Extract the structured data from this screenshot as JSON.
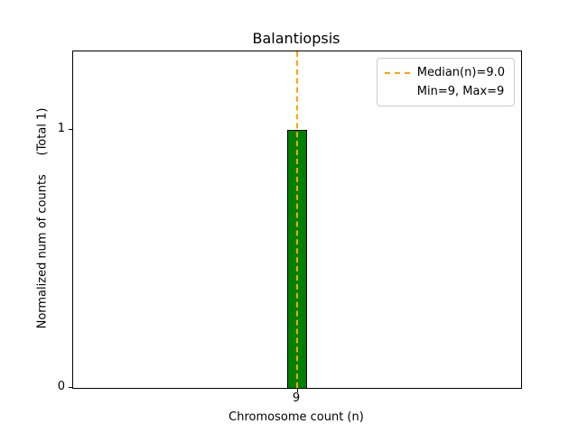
{
  "chart_data": {
    "type": "bar",
    "title": "Balantiopsis",
    "xlabel": "Chromosome count (n)",
    "ylabel": "Normalized num of counts     (Total 1)",
    "categories": [
      "9"
    ],
    "values": [
      1
    ],
    "xticks": [
      "9"
    ],
    "yticks": [
      "0",
      "1"
    ],
    "ylim": [
      0,
      1.3
    ],
    "grid": false,
    "bar_color": "#008000",
    "bar_edge_color": "#000000",
    "median_line": {
      "value": 9.0,
      "color": "#ffa500",
      "style": "dashed"
    },
    "min": 9,
    "max": 9,
    "total_counts": 1,
    "legend": {
      "position": "upper right",
      "entries": [
        "Median(n)=9.0",
        "Min=9, Max=9"
      ]
    }
  }
}
